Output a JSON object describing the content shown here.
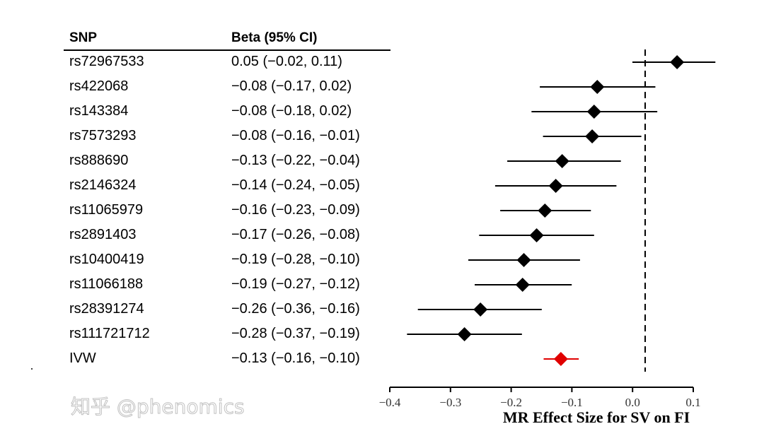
{
  "chart_data": {
    "type": "forest",
    "columns": {
      "snp": "SNP",
      "beta": "Beta (95% CI)"
    },
    "rows": [
      {
        "snp": "rs72967533",
        "label": "0.05 (−0.02, 0.11)",
        "est": 0.05,
        "lo": -0.02,
        "hi": 0.11
      },
      {
        "snp": "rs422068",
        "label": "−0.08 (−0.17, 0.02)",
        "est": -0.075,
        "lo": -0.165,
        "hi": 0.016
      },
      {
        "snp": "rs143384",
        "label": "−0.08 (−0.18, 0.02)",
        "est": -0.08,
        "lo": -0.178,
        "hi": 0.019
      },
      {
        "snp": "rs7573293",
        "label": "−0.08 (−0.16, −0.01)",
        "est": -0.083,
        "lo": -0.16,
        "hi": -0.006
      },
      {
        "snp": "rs888690",
        "label": "−0.13 (−0.22, −0.04)",
        "est": -0.13,
        "lo": -0.216,
        "hi": -0.038
      },
      {
        "snp": "rs2146324",
        "label": "−0.14 (−0.24, −0.05)",
        "est": -0.14,
        "lo": -0.235,
        "hi": -0.045
      },
      {
        "snp": "rs11065979",
        "label": "−0.16 (−0.23, −0.09)",
        "est": -0.157,
        "lo": -0.227,
        "hi": -0.085
      },
      {
        "snp": "rs2891403",
        "label": "−0.17 (−0.26, −0.08)",
        "est": -0.17,
        "lo": -0.26,
        "hi": -0.08
      },
      {
        "snp": "rs10400419",
        "label": "−0.19 (−0.28, −0.10)",
        "est": -0.19,
        "lo": -0.277,
        "hi": -0.102
      },
      {
        "snp": "rs11066188",
        "label": "−0.19 (−0.27, −0.12)",
        "est": -0.192,
        "lo": -0.267,
        "hi": -0.115
      },
      {
        "snp": "rs28391274",
        "label": "−0.26 (−0.36, −0.16)",
        "est": -0.258,
        "lo": -0.356,
        "hi": -0.162
      },
      {
        "snp": "rs111721712",
        "label": "−0.28 (−0.37, −0.19)",
        "est": -0.283,
        "lo": -0.373,
        "hi": -0.193
      },
      {
        "snp": "IVW",
        "label": "−0.13 (−0.16, −0.10)",
        "est": -0.132,
        "lo": -0.159,
        "hi": -0.104,
        "summary": true
      }
    ],
    "xlabel": "MR Effect Size for SV on FI",
    "xticks": [
      "−0.4",
      "−0.3",
      "−0.2",
      "−0.1",
      "0.0",
      "0.1"
    ],
    "xlim": [
      -0.4,
      0.1
    ],
    "reference_line": 0,
    "colors": {
      "point": "#000000",
      "summary": "#e00000"
    }
  },
  "watermark": "知乎 @phenomics"
}
